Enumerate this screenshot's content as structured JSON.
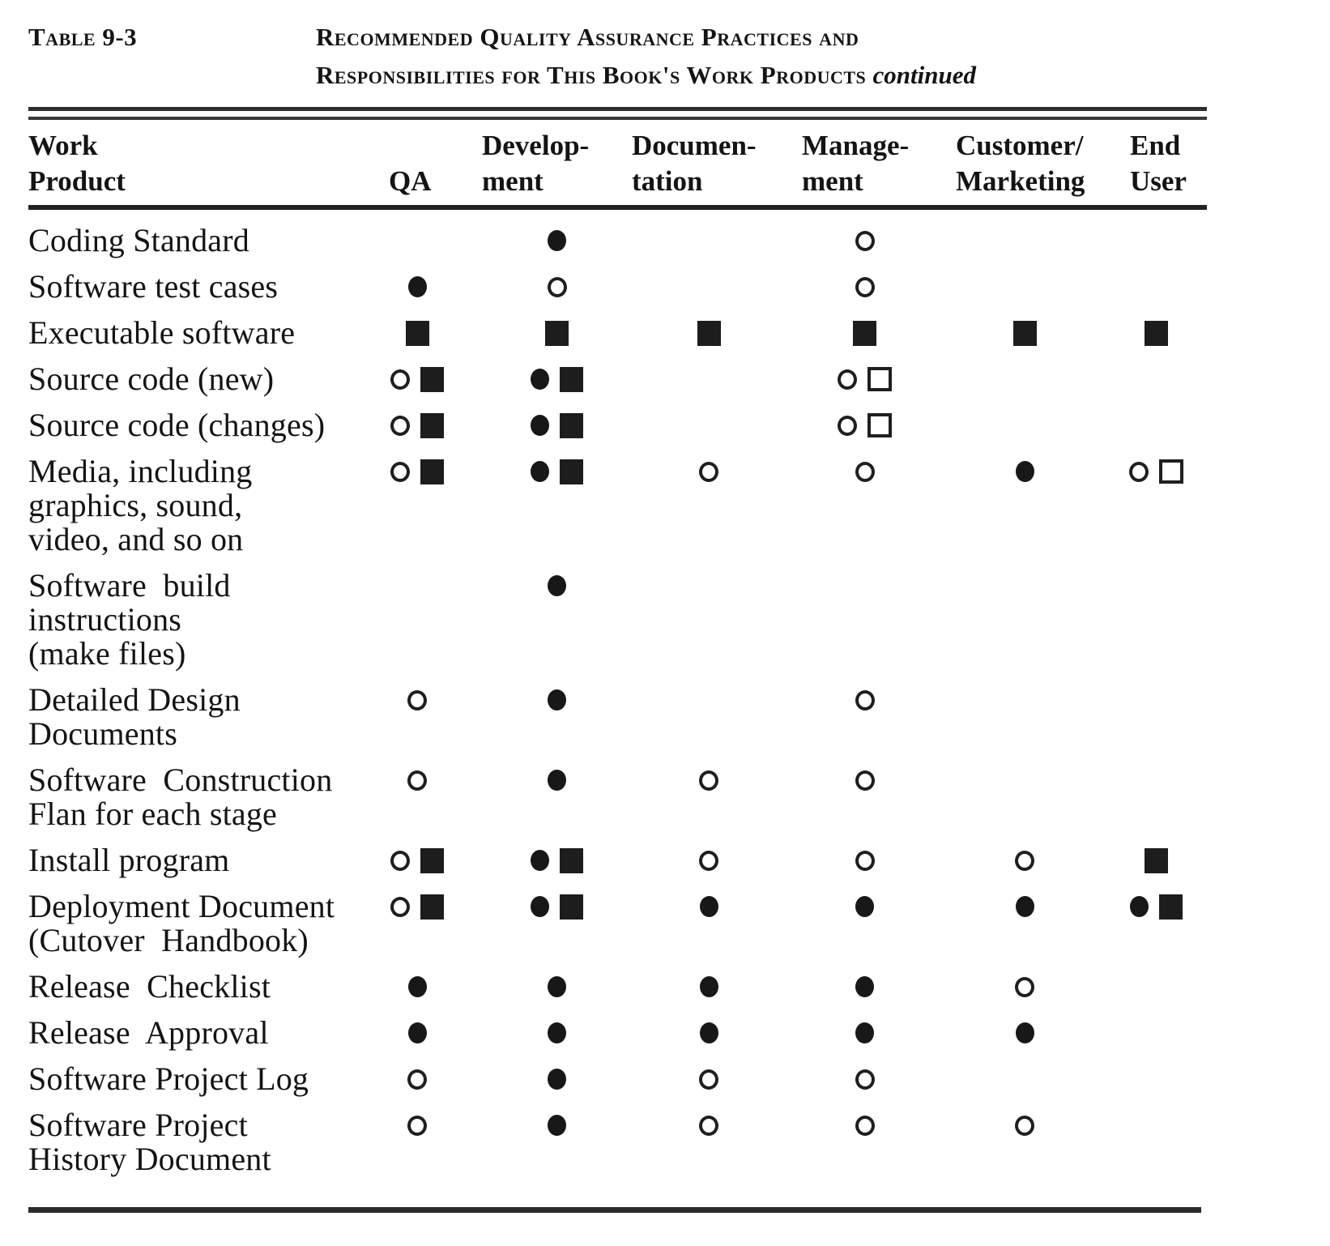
{
  "page": {
    "table_label": "Table 9-3",
    "title_line1": "Recommended Quality Assurance Practices and",
    "title_line2": "Responsibilities for This Book's Work Products",
    "title_continued": "continued"
  },
  "colors": {
    "paper": "#ffffff",
    "ink": "#141414"
  },
  "symbol_glyphs": {
    "filled-circle": "●",
    "open-circle": "○",
    "filled-square": "■",
    "open-square": "□"
  },
  "table": {
    "columns": [
      {
        "id": "work-product",
        "label": "Work\nProduct"
      },
      {
        "id": "qa",
        "label": "QA"
      },
      {
        "id": "development",
        "label": "Develop-\nment"
      },
      {
        "id": "documentation",
        "label": "Documen-\ntation"
      },
      {
        "id": "management",
        "label": "Manage-\nment"
      },
      {
        "id": "customer-marketing",
        "label": "Customer/\nMarketing"
      },
      {
        "id": "end-user",
        "label": "End\nUser"
      }
    ],
    "rows": [
      {
        "label": "Coding Standard",
        "cells": [
          [],
          [
            "filled-circle"
          ],
          [],
          [
            "open-circle"
          ],
          [],
          []
        ]
      },
      {
        "label": "Software test cases",
        "cells": [
          [
            "filled-circle"
          ],
          [
            "open-circle"
          ],
          [],
          [
            "open-circle"
          ],
          [],
          []
        ]
      },
      {
        "label": "Executable software",
        "cells": [
          [
            "filled-square"
          ],
          [
            "filled-square"
          ],
          [
            "filled-square"
          ],
          [
            "filled-square"
          ],
          [
            "filled-square"
          ],
          [
            "filled-square"
          ]
        ]
      },
      {
        "label": "Source code (new)",
        "cells": [
          [
            "open-circle",
            "filled-square"
          ],
          [
            "filled-circle",
            "filled-square"
          ],
          [],
          [
            "open-circle",
            "open-square"
          ],
          [],
          []
        ]
      },
      {
        "label": "Source code (changes)",
        "cells": [
          [
            "open-circle",
            "filled-square"
          ],
          [
            "filled-circle",
            "filled-square"
          ],
          [],
          [
            "open-circle",
            "open-square"
          ],
          [],
          []
        ]
      },
      {
        "label": "Media, including\ngraphics, sound,\nvideo, and so on",
        "cells": [
          [
            "open-circle",
            "filled-square"
          ],
          [
            "filled-circle",
            "filled-square"
          ],
          [
            "open-circle"
          ],
          [
            "open-circle"
          ],
          [
            "filled-circle"
          ],
          [
            "open-circle",
            "open-square"
          ]
        ]
      },
      {
        "label": "Software  build\ninstructions\n(make files)",
        "cells": [
          [],
          [
            "filled-circle"
          ],
          [],
          [],
          [],
          []
        ]
      },
      {
        "label": "Detailed Design\nDocuments",
        "cells": [
          [
            "open-circle"
          ],
          [
            "filled-circle"
          ],
          [],
          [
            "open-circle"
          ],
          [],
          []
        ]
      },
      {
        "label": "Software  Construction\nFlan for each stage",
        "cells": [
          [
            "open-circle"
          ],
          [
            "filled-circle"
          ],
          [
            "open-circle"
          ],
          [
            "open-circle"
          ],
          [],
          []
        ]
      },
      {
        "label": "Install program",
        "cells": [
          [
            "open-circle",
            "filled-square"
          ],
          [
            "filled-circle",
            "filled-square"
          ],
          [
            "open-circle"
          ],
          [
            "open-circle"
          ],
          [
            "open-circle"
          ],
          [
            "filled-square"
          ]
        ]
      },
      {
        "label": "Deployment Document\n(Cutover  Handbook)",
        "cells": [
          [
            "open-circle",
            "filled-square"
          ],
          [
            "filled-circle",
            "filled-square"
          ],
          [
            "filled-circle"
          ],
          [
            "filled-circle"
          ],
          [
            "filled-circle"
          ],
          [
            "filled-circle",
            "filled-square"
          ]
        ]
      },
      {
        "label": "Release  Checklist",
        "cells": [
          [
            "filled-circle"
          ],
          [
            "filled-circle"
          ],
          [
            "filled-circle"
          ],
          [
            "filled-circle"
          ],
          [
            "open-circle"
          ],
          []
        ]
      },
      {
        "label": "Release  Approval",
        "cells": [
          [
            "filled-circle"
          ],
          [
            "filled-circle"
          ],
          [
            "filled-circle"
          ],
          [
            "filled-circle"
          ],
          [
            "filled-circle"
          ],
          []
        ]
      },
      {
        "label": "Software Project Log",
        "cells": [
          [
            "open-circle"
          ],
          [
            "filled-circle"
          ],
          [
            "open-circle"
          ],
          [
            "open-circle"
          ],
          [],
          []
        ]
      },
      {
        "label": "Software Project\nHistory Document",
        "cells": [
          [
            "open-circle"
          ],
          [
            "filled-circle"
          ],
          [
            "open-circle"
          ],
          [
            "open-circle"
          ],
          [
            "open-circle"
          ],
          []
        ]
      }
    ]
  }
}
